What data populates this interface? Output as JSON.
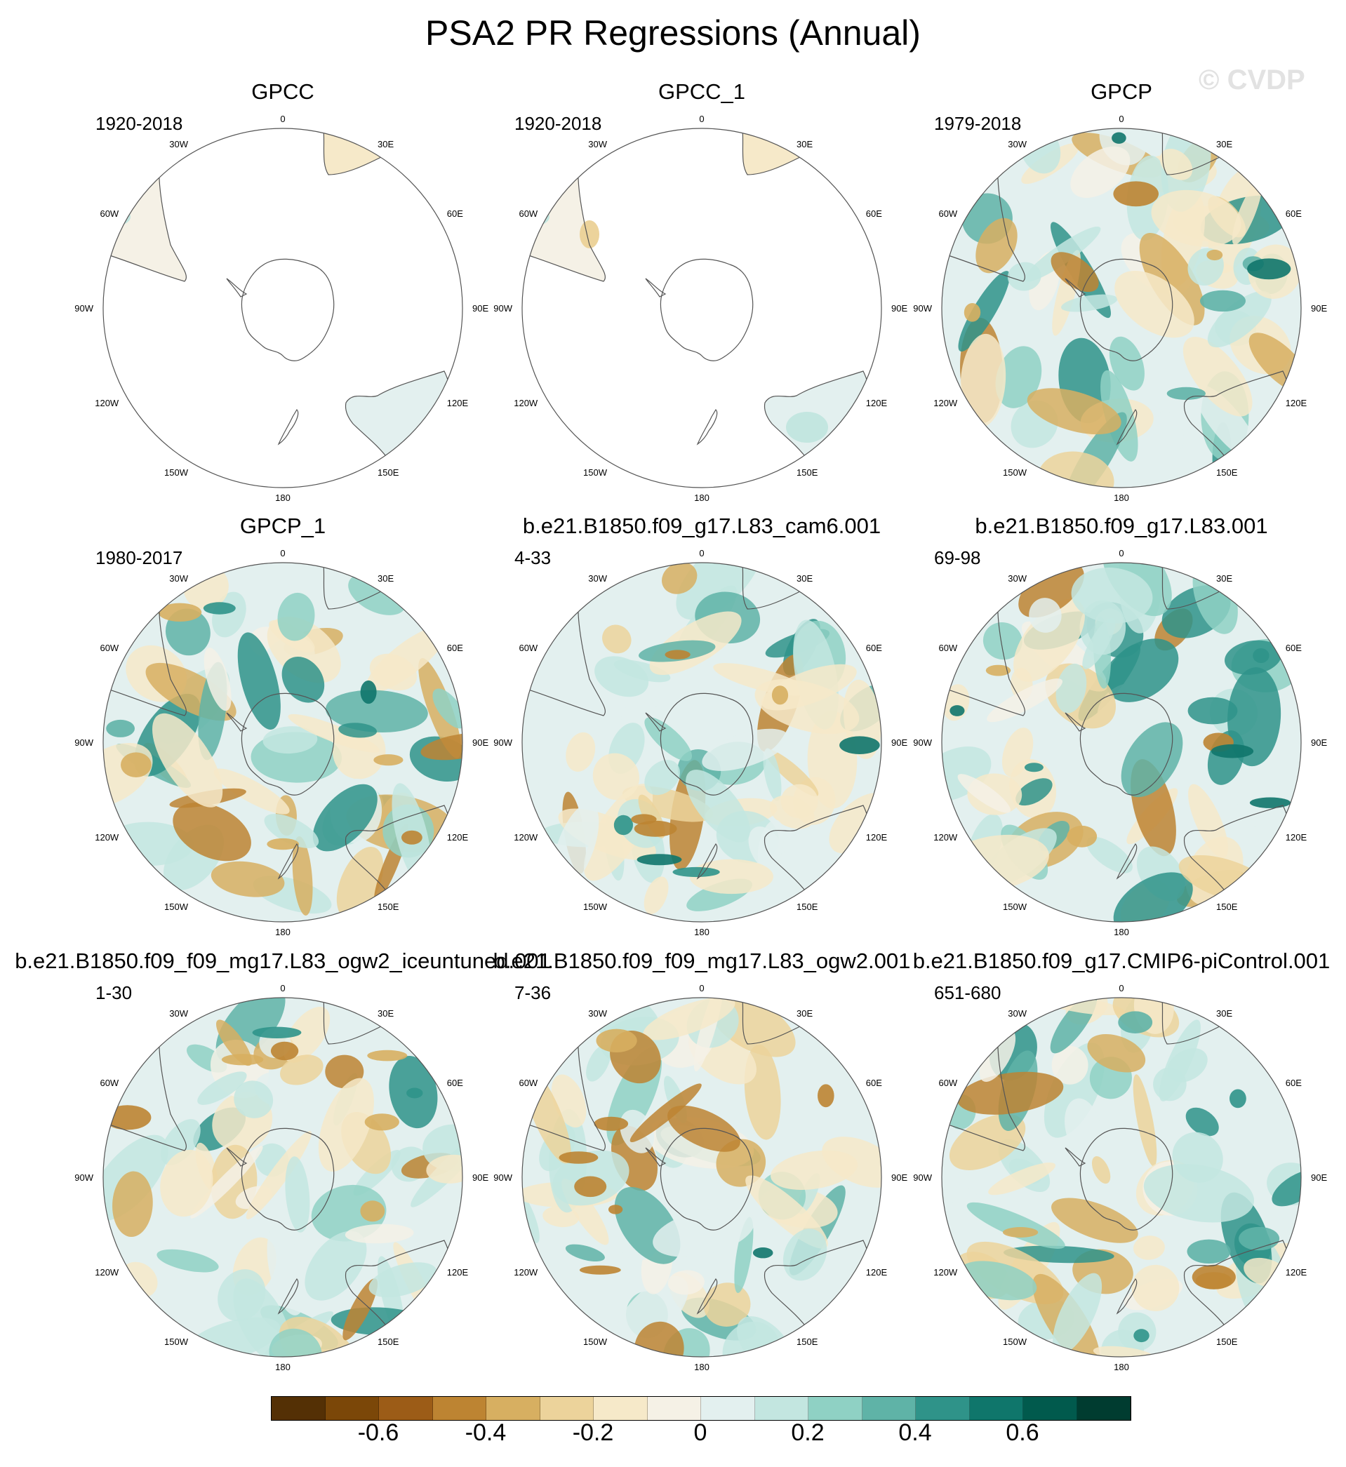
{
  "title": "PSA2 PR Regressions (Annual)",
  "watermark": "© CVDP",
  "panels": [
    {
      "title": "GPCC",
      "years": "1920-2018",
      "pattern": "land-only"
    },
    {
      "title": "GPCC_1",
      "years": "1920-2018",
      "pattern": "land-only"
    },
    {
      "title": "GPCP",
      "years": "1979-2018",
      "pattern": "full-field"
    },
    {
      "title": "GPCP_1",
      "years": "1980-2017",
      "pattern": "full-field"
    },
    {
      "title": "b.e21.B1850.f09_g17.L83_cam6.001",
      "years": "4-33",
      "pattern": "full-field"
    },
    {
      "title": "b.e21.B1850.f09_g17.L83.001",
      "years": "69-98",
      "pattern": "full-field"
    },
    {
      "title": "b.e21.B1850.f09_f09_mg17.L83_ogw2_iceuntuned.001",
      "years": "1-30",
      "pattern": "full-field"
    },
    {
      "title": "b.e21.B1850.f09_f09_mg17.L83_ogw2.001",
      "years": "7-36",
      "pattern": "full-field"
    },
    {
      "title": "b.e21.B1850.f09_g17.CMIP6-piControl.001",
      "years": "651-680",
      "pattern": "full-field"
    }
  ],
  "map": {
    "projection": "polar-stereographic-south",
    "lon_labels": [
      {
        "text": "0",
        "angle": 0
      },
      {
        "text": "30E",
        "angle": 30
      },
      {
        "text": "60E",
        "angle": 60
      },
      {
        "text": "90E",
        "angle": 90
      },
      {
        "text": "120E",
        "angle": 120
      },
      {
        "text": "150E",
        "angle": 150
      },
      {
        "text": "180",
        "angle": 180
      },
      {
        "text": "150W",
        "angle": 210
      },
      {
        "text": "120W",
        "angle": 240
      },
      {
        "text": "90W",
        "angle": 270
      },
      {
        "text": "60W",
        "angle": 300
      },
      {
        "text": "30W",
        "angle": 330
      }
    ]
  },
  "colorbar": {
    "colors": [
      "#543005",
      "#7b4708",
      "#9c5c17",
      "#bd8432",
      "#d7af61",
      "#ecd39b",
      "#f6e9c9",
      "#f5f1e6",
      "#e3f0ef",
      "#c3e6e0",
      "#8fd1c4",
      "#5fb3a7",
      "#2f9389",
      "#0f766b",
      "#015a4d",
      "#003c30"
    ],
    "ticks": [
      "-0.6",
      "-0.4",
      "-0.2",
      "0",
      "0.2",
      "0.4",
      "0.6"
    ],
    "tick_values": [
      -0.6,
      -0.4,
      -0.2,
      0,
      0.2,
      0.4,
      0.6
    ],
    "range": [
      -0.8,
      0.8
    ]
  }
}
